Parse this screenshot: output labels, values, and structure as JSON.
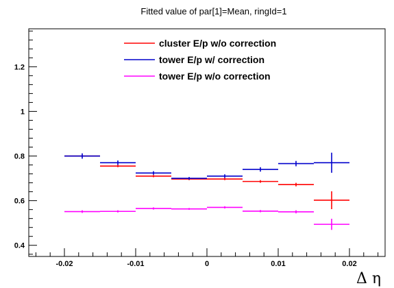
{
  "chart_data": {
    "type": "scatter",
    "title": "Fitted value of par[1]=Mean, ringId=1",
    "xlabel": "Δ η",
    "ylabel": "",
    "xlim": [
      -0.025,
      0.025
    ],
    "ylim": [
      0.35,
      1.37
    ],
    "xticks": [
      -0.02,
      -0.01,
      0,
      0.01,
      0.02
    ],
    "xtick_labels": [
      "-0.02",
      "-0.01",
      "0",
      "0.01",
      "0.02"
    ],
    "yticks": [
      0.4,
      0.6,
      0.8,
      1.0,
      1.2
    ],
    "ytick_labels": [
      "0.4",
      "0.6",
      "0.8",
      "1",
      "1.2"
    ],
    "grid": false,
    "legend_position": "top-center",
    "x": [
      -0.0175,
      -0.0125,
      -0.0075,
      -0.0025,
      0.0025,
      0.0075,
      0.0125,
      0.0175
    ],
    "x_halfwidth": 0.0025,
    "series": [
      {
        "name": "cluster E/p w/o correction",
        "color": "#ff0000",
        "values": [
          0.8,
          0.755,
          0.71,
          0.697,
          0.697,
          0.686,
          0.672,
          0.602
        ],
        "errors": [
          0.004,
          0.005,
          0.005,
          0.005,
          0.005,
          0.006,
          0.008,
          0.04
        ]
      },
      {
        "name": "tower E/p w/ correction",
        "color": "#0000cc",
        "values": [
          0.8,
          0.77,
          0.724,
          0.7,
          0.71,
          0.74,
          0.766,
          0.77
        ],
        "errors": [
          0.012,
          0.01,
          0.008,
          0.006,
          0.008,
          0.01,
          0.012,
          0.045
        ]
      },
      {
        "name": "tower E/p w/o correction",
        "color": "#ff00ff",
        "values": [
          0.551,
          0.552,
          0.565,
          0.563,
          0.57,
          0.553,
          0.55,
          0.494
        ],
        "errors": [
          0.006,
          0.005,
          0.005,
          0.004,
          0.005,
          0.005,
          0.007,
          0.025
        ]
      }
    ]
  }
}
